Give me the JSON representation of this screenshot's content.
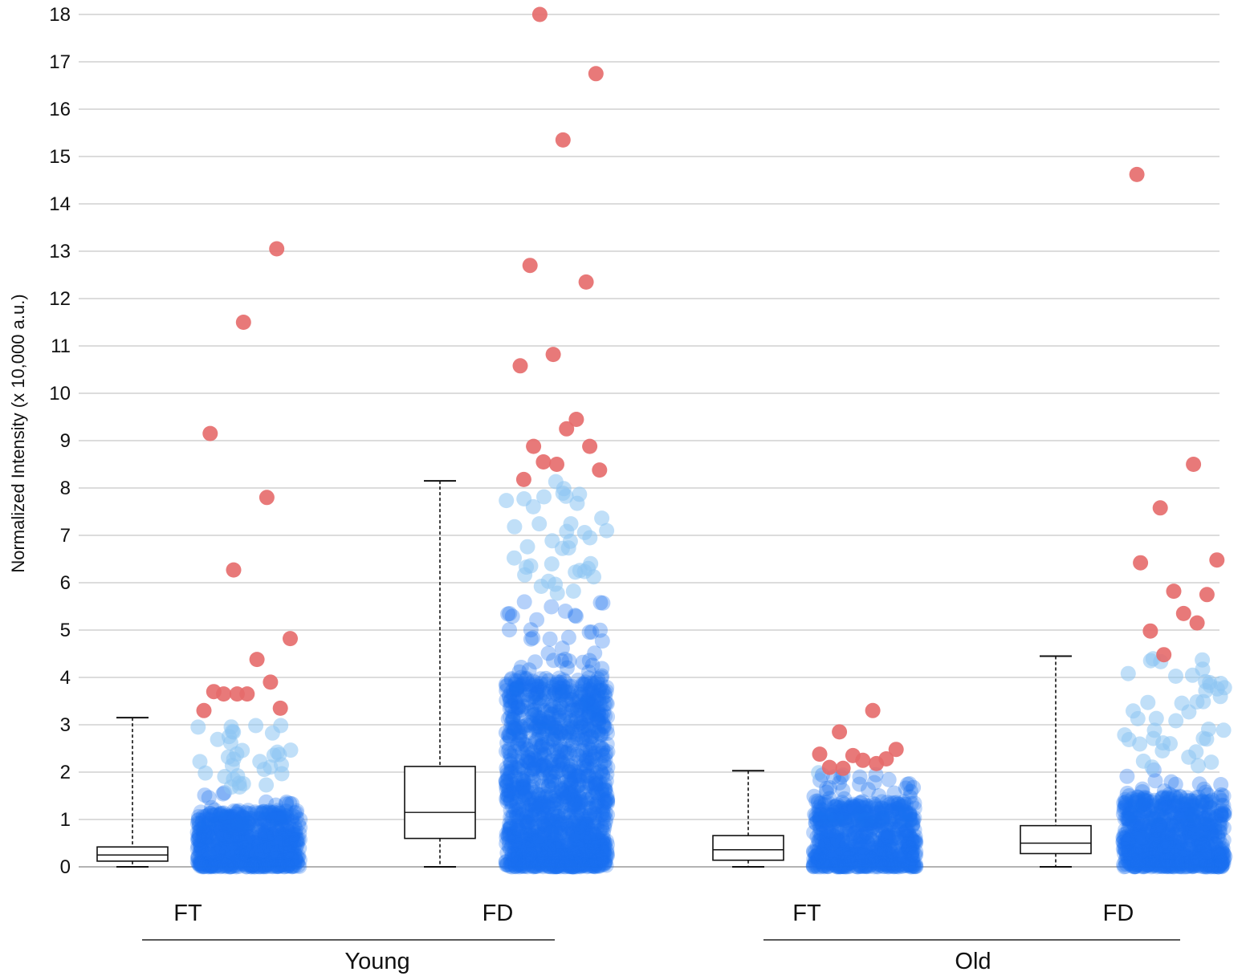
{
  "chart_data": {
    "type": "box-scatter",
    "title": "",
    "xlabel": "",
    "ylabel": "Normalized Intensity (x 10,000 a.u.)",
    "ylim": [
      0,
      18
    ],
    "yticks": [
      "0",
      "1",
      "2",
      "3",
      "4",
      "5",
      "6",
      "7",
      "8",
      "9",
      "10",
      "11",
      "12",
      "13",
      "14",
      "15",
      "16",
      "17",
      "18"
    ],
    "grid": true,
    "colors": {
      "inlier": "#1a6ff0",
      "inlier_light": "#8cc4f2",
      "outlier": "#e66a6a",
      "grid": "#c8c8c8",
      "box": "#111111"
    },
    "groups": [
      {
        "name": "Young",
        "categories": [
          "FT",
          "FD"
        ]
      },
      {
        "name": "Old",
        "categories": [
          "FT",
          "FD"
        ]
      }
    ],
    "series": [
      {
        "group": "Young",
        "category": "FT",
        "box": {
          "min": 0.0,
          "q1": 0.12,
          "median": 0.25,
          "q3": 0.42,
          "max": 3.15
        },
        "inlier_cloud": {
          "dense_max": 1.2,
          "sparse_max": 3.0,
          "count": 700
        },
        "outliers": [
          3.3,
          3.65,
          3.9,
          3.7,
          3.65,
          3.35,
          3.65,
          4.38,
          4.82,
          6.27,
          7.8,
          9.15,
          11.5,
          13.05
        ]
      },
      {
        "group": "Young",
        "category": "FD",
        "box": {
          "min": 0.0,
          "q1": 0.6,
          "median": 1.15,
          "q3": 2.12,
          "max": 8.15
        },
        "inlier_cloud": {
          "dense_max": 4.0,
          "sparse_max": 8.15,
          "count": 1400
        },
        "outliers": [
          8.18,
          8.5,
          8.88,
          8.88,
          9.25,
          8.38,
          8.55,
          9.45,
          10.58,
          10.82,
          12.35,
          12.7,
          15.35,
          16.75,
          18.0
        ]
      },
      {
        "group": "Old",
        "category": "FT",
        "box": {
          "min": 0.0,
          "q1": 0.14,
          "median": 0.36,
          "q3": 0.66,
          "max": 2.03
        },
        "inlier_cloud": {
          "dense_max": 1.4,
          "sparse_max": 2.0,
          "count": 650
        },
        "outliers": [
          2.08,
          2.18,
          2.38,
          2.35,
          2.28,
          2.1,
          2.25,
          2.48,
          2.85,
          3.3
        ]
      },
      {
        "group": "Old",
        "category": "FD",
        "box": {
          "min": 0.0,
          "q1": 0.28,
          "median": 0.5,
          "q3": 0.87,
          "max": 4.45
        },
        "inlier_cloud": {
          "dense_max": 1.5,
          "sparse_max": 4.45,
          "count": 800
        },
        "outliers": [
          4.48,
          5.15,
          6.42,
          5.82,
          5.75,
          4.98,
          5.35,
          6.48,
          7.58,
          8.5,
          14.62
        ]
      }
    ]
  }
}
